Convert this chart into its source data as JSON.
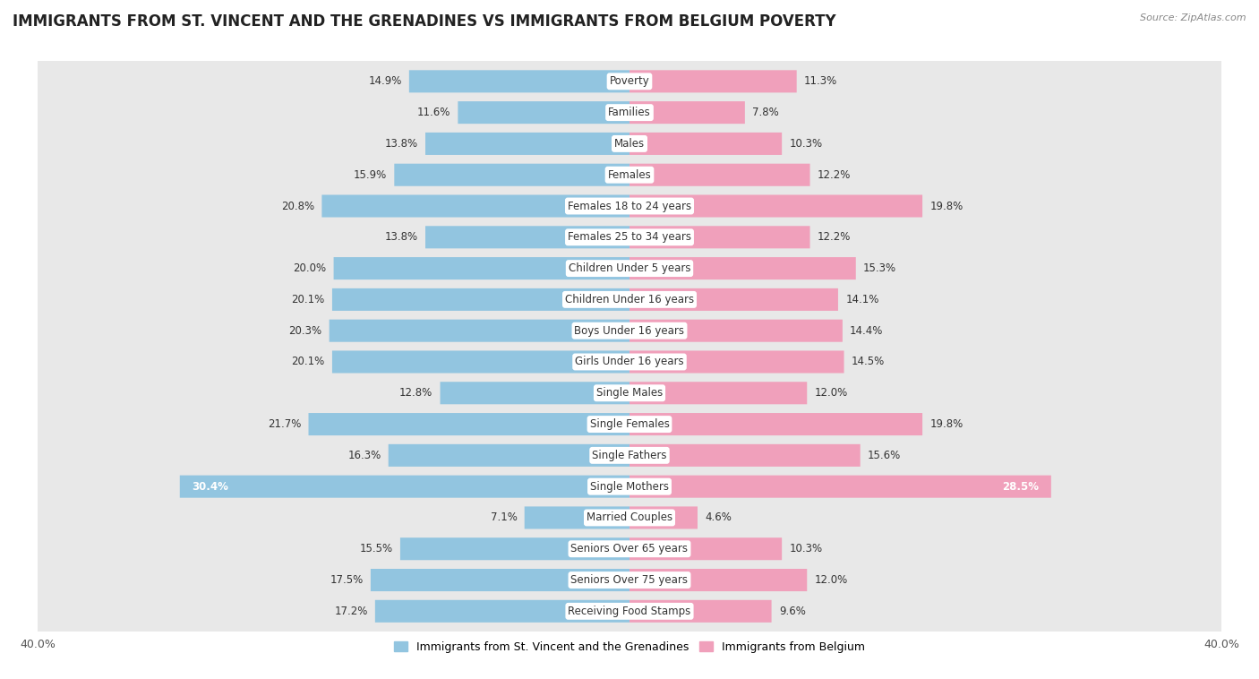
{
  "title": "IMMIGRANTS FROM ST. VINCENT AND THE GRENADINES VS IMMIGRANTS FROM BELGIUM POVERTY",
  "source": "Source: ZipAtlas.com",
  "categories": [
    "Poverty",
    "Families",
    "Males",
    "Females",
    "Females 18 to 24 years",
    "Females 25 to 34 years",
    "Children Under 5 years",
    "Children Under 16 years",
    "Boys Under 16 years",
    "Girls Under 16 years",
    "Single Males",
    "Single Females",
    "Single Fathers",
    "Single Mothers",
    "Married Couples",
    "Seniors Over 65 years",
    "Seniors Over 75 years",
    "Receiving Food Stamps"
  ],
  "left_values": [
    14.9,
    11.6,
    13.8,
    15.9,
    20.8,
    13.8,
    20.0,
    20.1,
    20.3,
    20.1,
    12.8,
    21.7,
    16.3,
    30.4,
    7.1,
    15.5,
    17.5,
    17.2
  ],
  "right_values": [
    11.3,
    7.8,
    10.3,
    12.2,
    19.8,
    12.2,
    15.3,
    14.1,
    14.4,
    14.5,
    12.0,
    19.8,
    15.6,
    28.5,
    4.6,
    10.3,
    12.0,
    9.6
  ],
  "left_color": "#92c5e0",
  "right_color": "#f0a0bb",
  "left_label": "Immigrants from St. Vincent and the Grenadines",
  "right_label": "Immigrants from Belgium",
  "axis_max": 40.0,
  "background_color": "#ffffff",
  "row_bg_color": "#e8e8e8",
  "title_fontsize": 12,
  "label_fontsize": 8.5,
  "value_fontsize": 8.5
}
